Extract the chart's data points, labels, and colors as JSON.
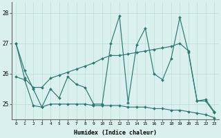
{
  "xlabel": "Humidex (Indice chaleur)",
  "background_color": "#d9f0ef",
  "grid_color": "#b8dcd8",
  "line_color": "#2a7a72",
  "x_values": [
    0,
    1,
    2,
    3,
    4,
    5,
    6,
    7,
    8,
    9,
    10,
    11,
    12,
    13,
    14,
    15,
    16,
    17,
    18,
    19,
    20,
    21,
    22,
    23
  ],
  "series1": [
    27.0,
    26.1,
    25.5,
    24.9,
    25.5,
    25.2,
    25.9,
    25.65,
    25.55,
    25.0,
    25.0,
    27.0,
    27.9,
    25.05,
    26.95,
    27.5,
    26.0,
    25.8,
    26.5,
    27.85,
    26.7,
    25.1,
    25.15,
    24.75
  ],
  "series2": [
    27.0,
    25.85,
    25.55,
    25.55,
    25.85,
    25.95,
    26.05,
    26.15,
    26.25,
    26.35,
    26.5,
    26.6,
    26.6,
    26.65,
    26.7,
    26.75,
    26.8,
    26.85,
    26.9,
    27.0,
    26.75,
    25.1,
    25.1,
    24.72
  ],
  "series3": [
    25.9,
    25.8,
    24.95,
    24.9,
    25.0,
    25.0,
    25.0,
    25.0,
    25.0,
    24.95,
    24.95,
    24.95,
    24.95,
    24.9,
    24.9,
    24.9,
    24.85,
    24.85,
    24.8,
    24.8,
    24.75,
    24.7,
    24.65,
    24.55
  ],
  "ylim_min": 24.5,
  "ylim_max": 28.35,
  "yticks": [
    25,
    26,
    27,
    28
  ],
  "xticks": [
    0,
    1,
    2,
    3,
    4,
    5,
    6,
    7,
    8,
    9,
    10,
    11,
    12,
    13,
    14,
    15,
    16,
    17,
    18,
    19,
    20,
    21,
    22,
    23
  ]
}
